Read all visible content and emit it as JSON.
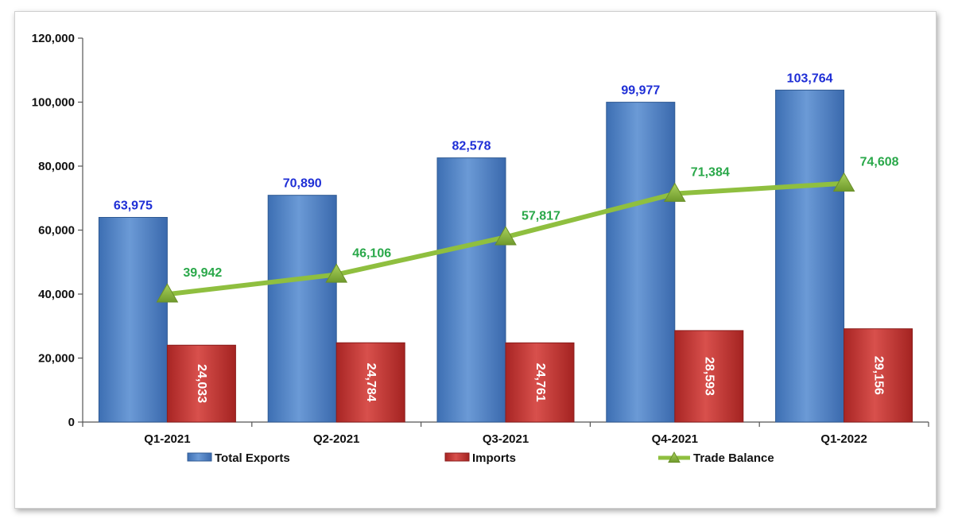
{
  "chart_data": {
    "type": "bar",
    "categories": [
      "Q1-2021",
      "Q2-2021",
      "Q3-2021",
      "Q4-2021",
      "Q1-2022"
    ],
    "series": [
      {
        "name": "Total Exports",
        "kind": "bar",
        "color": "#4f86c6",
        "values": [
          63975,
          70890,
          82578,
          99977,
          103764
        ],
        "labels": [
          "63,975",
          "70,890",
          "82,578",
          "99,977",
          "103,764"
        ]
      },
      {
        "name": "Imports",
        "kind": "bar",
        "color": "#c0302e",
        "values": [
          24033,
          24784,
          24761,
          28593,
          29156
        ],
        "labels": [
          "24,033",
          "24,784",
          "24,761",
          "28,593",
          "29,156"
        ]
      },
      {
        "name": "Trade Balance",
        "kind": "line",
        "color": "#8fbf3f",
        "values": [
          39942,
          46106,
          57817,
          71384,
          74608
        ],
        "labels": [
          "39,942",
          "46,106",
          "57,817",
          "71,384",
          "74,608"
        ]
      }
    ],
    "yticks": [
      0,
      20000,
      40000,
      60000,
      80000,
      100000,
      120000
    ],
    "ytick_labels": [
      "0",
      "20,000",
      "40,000",
      "60,000",
      "80,000",
      "100,000",
      "120,000"
    ],
    "ylim": [
      0,
      120000
    ],
    "legend_position": "bottom",
    "grid": false
  }
}
